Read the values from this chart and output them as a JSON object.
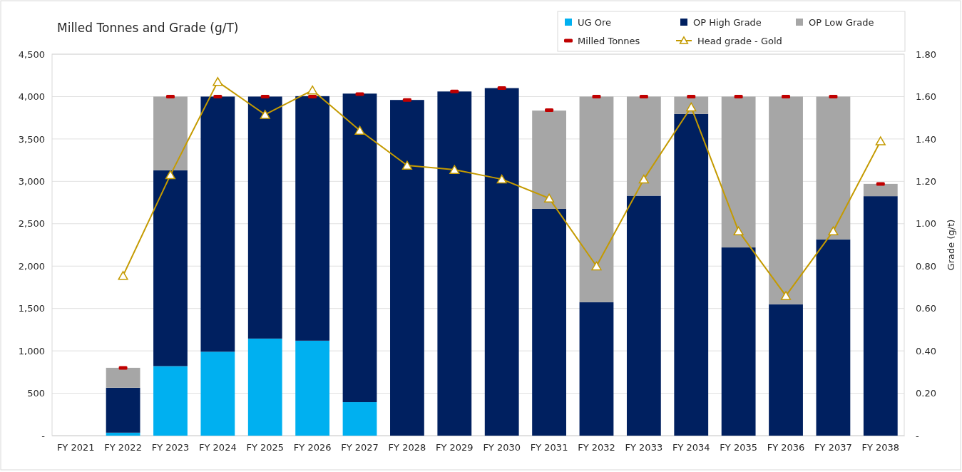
{
  "chart_data": {
    "type": "bar",
    "title": "Milled Tonnes and Grade (g/T)",
    "y2label": "Grade (g/t)",
    "categories": [
      "FY 2021",
      "FY 2022",
      "FY 2023",
      "FY 2024",
      "FY 2025",
      "FY 2026",
      "FY 2027",
      "FY 2028",
      "FY 2029",
      "FY 2030",
      "FY 2031",
      "FY 2032",
      "FY 2033",
      "FY 2034",
      "FY 2035",
      "FY 2036",
      "FY 2037",
      "FY 2038"
    ],
    "stacked": true,
    "series": [
      {
        "name": "UG Ore",
        "color": "#00b0f0",
        "values": [
          null,
          35,
          820,
          990,
          1145,
          1120,
          395,
          null,
          null,
          null,
          null,
          null,
          null,
          null,
          null,
          null,
          null,
          null
        ]
      },
      {
        "name": "OP High Grade",
        "color": "#002060",
        "values": [
          null,
          530,
          2310,
          3010,
          2855,
          2885,
          3640,
          3960,
          4060,
          4100,
          2675,
          1575,
          2830,
          3795,
          2220,
          1550,
          2315,
          2825
        ]
      },
      {
        "name": "OP Low Grade",
        "color": "#a6a6a6",
        "values": [
          null,
          235,
          870,
          null,
          null,
          null,
          null,
          null,
          null,
          null,
          1160,
          2425,
          1170,
          205,
          1780,
          2450,
          1685,
          145
        ]
      },
      {
        "name": "Milled Tonnes",
        "type": "scatter",
        "color": "#c00000",
        "values": [
          null,
          800,
          4000,
          4000,
          4000,
          4000,
          4030,
          3960,
          4060,
          4100,
          3840,
          4000,
          4000,
          4000,
          4000,
          4000,
          4000,
          2970
        ]
      },
      {
        "name": "Head grade - Gold",
        "type": "line",
        "axis": "y2",
        "color": "#c49a00",
        "marker": "triangle",
        "values": [
          null,
          0.755,
          1.23,
          1.67,
          1.515,
          1.63,
          1.44,
          1.275,
          1.255,
          1.21,
          1.12,
          0.8,
          1.21,
          1.55,
          0.965,
          0.66,
          0.965,
          1.39
        ]
      }
    ],
    "ylim": [
      0,
      4500
    ],
    "yticks": [
      {
        "value": 0,
        "label": "-"
      },
      {
        "value": 500,
        "label": "500"
      },
      {
        "value": 1000,
        "label": "1,000"
      },
      {
        "value": 1500,
        "label": "1,500"
      },
      {
        "value": 2000,
        "label": "2,000"
      },
      {
        "value": 2500,
        "label": "2,500"
      },
      {
        "value": 3000,
        "label": "3,000"
      },
      {
        "value": 3500,
        "label": "3,500"
      },
      {
        "value": 4000,
        "label": "4,000"
      },
      {
        "value": 4500,
        "label": "4,500"
      }
    ],
    "y2lim": [
      0,
      1.8
    ],
    "y2ticks": [
      {
        "value": 0,
        "label": "-"
      },
      {
        "value": 0.2,
        "label": "0.20"
      },
      {
        "value": 0.4,
        "label": "0.40"
      },
      {
        "value": 0.6,
        "label": "0.60"
      },
      {
        "value": 0.8,
        "label": "0.80"
      },
      {
        "value": 1,
        "label": "1.00"
      },
      {
        "value": 1.2,
        "label": "1.20"
      },
      {
        "value": 1.4,
        "label": "1.40"
      },
      {
        "value": 1.6,
        "label": "1.60"
      },
      {
        "value": 1.8,
        "label": "1.80"
      }
    ],
    "grid": "y",
    "legend": "top right"
  }
}
